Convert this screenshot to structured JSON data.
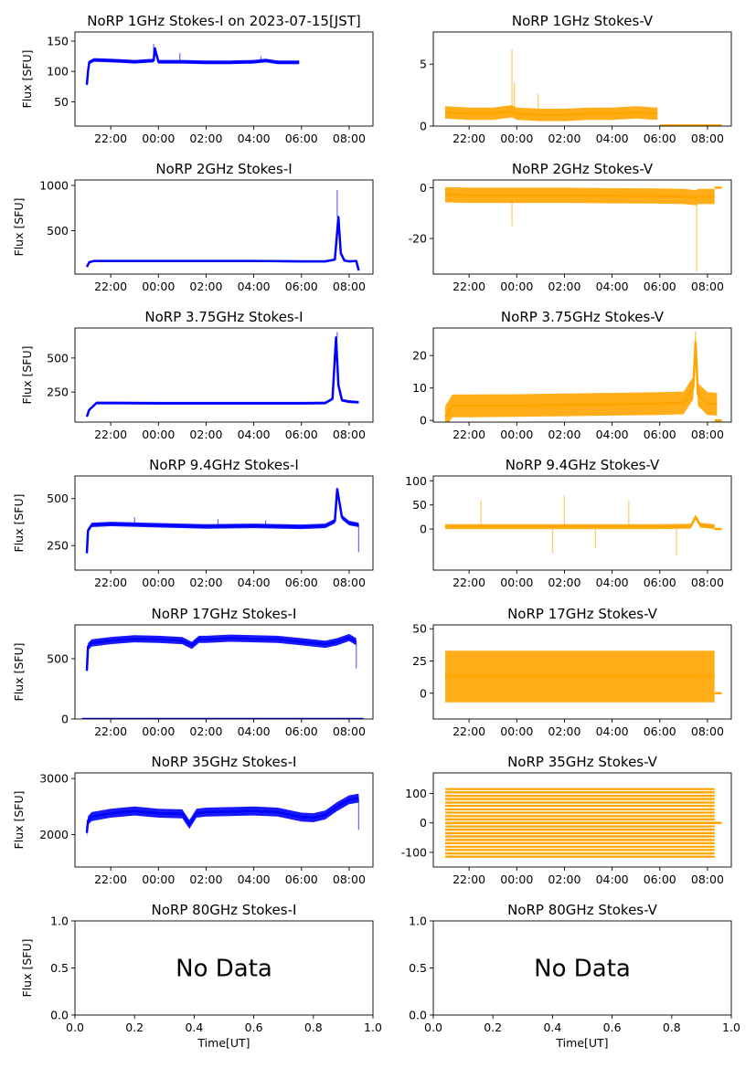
{
  "colors": {
    "stokes_i": "#0000ff",
    "stokes_v": "#ffa500",
    "axis": "#000000"
  },
  "chart_data": [
    {
      "id": "p1i",
      "type": "line",
      "title": "NoRP 1GHz Stokes-I on 2023-07-15[JST]",
      "ylabel": "Flux [SFU]",
      "xlabel": "",
      "x_ticks": [
        "22:00",
        "00:00",
        "02:00",
        "04:00",
        "06:00",
        "08:00"
      ],
      "y_ticks": [
        50,
        100,
        150
      ],
      "ylim": [
        10,
        165
      ],
      "series": [
        {
          "color": "stokes_i",
          "band": 3,
          "x": [
            21.0,
            21.05,
            21.1,
            21.3,
            22,
            23,
            23.8,
            23.85,
            24,
            25,
            26,
            27,
            28,
            28.5,
            29,
            29.9
          ],
          "y": [
            78,
            100,
            115,
            119,
            118,
            116,
            118,
            138,
            116,
            116,
            115,
            115,
            116,
            118,
            115,
            115
          ]
        }
      ],
      "spikes": [
        {
          "x": 23.8,
          "y": 145
        },
        {
          "x": 24.9,
          "y": 130
        },
        {
          "x": 28.3,
          "y": 125
        }
      ],
      "baseline": null,
      "no_data": false
    },
    {
      "id": "p1v",
      "type": "line",
      "title": "NoRP 1GHz Stokes-V",
      "ylabel": "",
      "xlabel": "",
      "x_ticks": [
        "22:00",
        "00:00",
        "02:00",
        "04:00",
        "06:00",
        "08:00"
      ],
      "y_ticks": [
        0,
        5
      ],
      "ylim": [
        0,
        7.6
      ],
      "series": [
        {
          "color": "stokes_v",
          "band": 0.5,
          "x": [
            21.0,
            22,
            23,
            23.8,
            24,
            25,
            26,
            27,
            28,
            29,
            29.9
          ],
          "y": [
            1.1,
            1.0,
            1.0,
            1.2,
            1.0,
            0.9,
            0.9,
            1.0,
            1.0,
            1.1,
            1.0
          ]
        }
      ],
      "spikes": [
        {
          "x": 23.8,
          "y": 6.2
        },
        {
          "x": 24.9,
          "y": 2.6
        },
        {
          "x": 23.9,
          "y": 3.5
        }
      ],
      "baseline": {
        "y": 0.05,
        "x0": 30.0,
        "x1": 32.6
      },
      "no_data": false
    },
    {
      "id": "p2i",
      "type": "line",
      "title": "NoRP 2GHz Stokes-I",
      "ylabel": "Flux [SFU]",
      "xlabel": "",
      "x_ticks": [
        "22:00",
        "00:00",
        "02:00",
        "04:00",
        "06:00",
        "08:00"
      ],
      "y_ticks": [
        500,
        1000
      ],
      "ylim": [
        20,
        1060
      ],
      "series": [
        {
          "color": "stokes_i",
          "band": 12,
          "x": [
            21.0,
            21.1,
            21.3,
            22,
            24,
            26,
            28,
            30,
            31.0,
            31.4,
            31.55,
            31.65,
            31.8,
            32.0,
            32.3,
            32.4
          ],
          "y": [
            100,
            150,
            165,
            165,
            165,
            165,
            165,
            160,
            160,
            180,
            650,
            250,
            170,
            160,
            165,
            60
          ]
        }
      ],
      "spikes": [
        {
          "x": 31.5,
          "y": 950
        }
      ],
      "baseline": null,
      "no_data": false
    },
    {
      "id": "p2v",
      "type": "line",
      "title": "NoRP 2GHz Stokes-V",
      "ylabel": "",
      "xlabel": "",
      "x_ticks": [
        "22:00",
        "00:00",
        "02:00",
        "04:00",
        "06:00",
        "08:00"
      ],
      "y_ticks": [
        -20,
        0
      ],
      "ylim": [
        -34,
        3
      ],
      "series": [
        {
          "color": "stokes_v",
          "band": 3.0,
          "x": [
            21.0,
            22,
            23,
            23.8,
            24,
            26,
            28,
            30,
            31,
            31.5,
            31.6,
            32,
            32.3
          ],
          "y": [
            -2.8,
            -3,
            -3,
            -3,
            -3,
            -3,
            -3.2,
            -3.3,
            -3.5,
            -4,
            -3.5,
            -3.5,
            -3.5
          ]
        }
      ],
      "spikes": [
        {
          "x": 23.8,
          "y": -15
        },
        {
          "x": 31.55,
          "y": -33
        }
      ],
      "baseline": {
        "y": 0,
        "x0": 32.3,
        "x1": 32.6
      },
      "no_data": false
    },
    {
      "id": "p375i",
      "type": "line",
      "title": "NoRP 3.75GHz Stokes-I",
      "ylabel": "Flux [SFU]",
      "xlabel": "",
      "x_ticks": [
        "22:00",
        "00:00",
        "02:00",
        "04:00",
        "06:00",
        "08:00"
      ],
      "y_ticks": [
        250,
        500
      ],
      "ylim": [
        30,
        720
      ],
      "series": [
        {
          "color": "stokes_i",
          "band": 10,
          "x": [
            21.0,
            21.1,
            21.4,
            22,
            24,
            26,
            28,
            30,
            31.0,
            31.3,
            31.45,
            31.55,
            31.7,
            32.0,
            32.4
          ],
          "y": [
            70,
            120,
            170,
            170,
            168,
            168,
            168,
            168,
            170,
            200,
            650,
            300,
            190,
            180,
            175
          ]
        }
      ],
      "spikes": [
        {
          "x": 31.5,
          "y": 690
        }
      ],
      "baseline": null,
      "no_data": false
    },
    {
      "id": "p375v",
      "type": "line",
      "title": "NoRP 3.75GHz Stokes-V",
      "ylabel": "",
      "xlabel": "",
      "x_ticks": [
        "22:00",
        "00:00",
        "02:00",
        "04:00",
        "06:00",
        "08:00"
      ],
      "y_ticks": [
        0,
        10,
        20
      ],
      "ylim": [
        -0.5,
        28.5
      ],
      "series": [
        {
          "color": "stokes_v",
          "band": 3.5,
          "x": [
            21.0,
            21.3,
            22,
            24,
            26,
            28,
            30,
            31,
            31.4,
            31.5,
            31.6,
            32,
            32.4
          ],
          "y": [
            1,
            4.5,
            4.5,
            4.6,
            4.8,
            5,
            5.2,
            5.4,
            10,
            24,
            8,
            5.2,
            5
          ]
        }
      ],
      "spikes": [
        {
          "x": 31.5,
          "y": 27.5
        }
      ],
      "baseline": {
        "y": 0,
        "x0": 32.3,
        "x1": 32.6
      },
      "no_data": false
    },
    {
      "id": "p94i",
      "type": "line",
      "title": "NoRP 9.4GHz Stokes-I",
      "ylabel": "Flux [SFU]",
      "xlabel": "",
      "x_ticks": [
        "22:00",
        "00:00",
        "02:00",
        "04:00",
        "06:00",
        "08:00"
      ],
      "y_ticks": [
        250,
        500
      ],
      "ylim": [
        120,
        620
      ],
      "series": [
        {
          "color": "stokes_i",
          "band": 12,
          "x": [
            21.0,
            21.05,
            21.2,
            22,
            24,
            26,
            28,
            30,
            31.0,
            31.4,
            31.5,
            31.7,
            32.0,
            32.4
          ],
          "y": [
            210,
            330,
            360,
            365,
            358,
            352,
            355,
            350,
            355,
            380,
            550,
            400,
            370,
            360
          ]
        }
      ],
      "spikes": [
        {
          "x": 23.0,
          "y": 400
        },
        {
          "x": 26.5,
          "y": 390
        },
        {
          "x": 28.5,
          "y": 385
        },
        {
          "x": 32.4,
          "y": 215
        }
      ],
      "baseline": null,
      "no_data": false
    },
    {
      "id": "p94v",
      "type": "line",
      "title": "NoRP 9.4GHz Stokes-V",
      "ylabel": "",
      "xlabel": "",
      "x_ticks": [
        "22:00",
        "00:00",
        "02:00",
        "04:00",
        "06:00",
        "08:00"
      ],
      "y_ticks": [
        0,
        50,
        100
      ],
      "ylim": [
        -85,
        110
      ],
      "series": [
        {
          "color": "stokes_v",
          "band": 5,
          "x": [
            21.0,
            22,
            24,
            26,
            28,
            30,
            31.3,
            31.5,
            31.7,
            32.3
          ],
          "y": [
            5,
            5,
            5,
            5,
            5,
            5,
            6,
            25,
            8,
            5
          ]
        }
      ],
      "spikes": [
        {
          "x": 22.5,
          "y": 60
        },
        {
          "x": 25.5,
          "y": -50
        },
        {
          "x": 26.0,
          "y": 70
        },
        {
          "x": 28.7,
          "y": 60
        },
        {
          "x": 27.3,
          "y": -40
        },
        {
          "x": 30.7,
          "y": -55
        }
      ],
      "baseline": {
        "y": 0,
        "x0": 32.3,
        "x1": 32.6
      },
      "no_data": false
    },
    {
      "id": "p17i",
      "type": "line",
      "title": "NoRP 17GHz Stokes-I",
      "ylabel": "Flux [SFU]",
      "xlabel": "",
      "x_ticks": [
        "22:00",
        "00:00",
        "02:00",
        "04:00",
        "06:00",
        "08:00"
      ],
      "y_ticks": [
        0,
        500
      ],
      "ylim": [
        0,
        780
      ],
      "series": [
        {
          "color": "stokes_i",
          "band": 30,
          "x": [
            21.0,
            21.05,
            21.2,
            22,
            23,
            24,
            25,
            25.4,
            25.7,
            26,
            27,
            28,
            29,
            30,
            31,
            31.5,
            32,
            32.3
          ],
          "y": [
            400,
            600,
            630,
            650,
            665,
            660,
            650,
            610,
            660,
            660,
            670,
            665,
            660,
            640,
            620,
            640,
            675,
            640
          ]
        }
      ],
      "spikes": [
        {
          "x": 32.3,
          "y": 420
        }
      ],
      "baseline": {
        "y": 0,
        "x0": 20.8,
        "x1": 32.6
      },
      "no_data": false
    },
    {
      "id": "p17v",
      "type": "line",
      "title": "NoRP 17GHz Stokes-V",
      "ylabel": "",
      "xlabel": "",
      "x_ticks": [
        "22:00",
        "00:00",
        "02:00",
        "04:00",
        "06:00",
        "08:00"
      ],
      "y_ticks": [
        0,
        25,
        50
      ],
      "ylim": [
        -20,
        53
      ],
      "series": [
        {
          "color": "stokes_v",
          "band": 20,
          "x": [
            21.0,
            22,
            24,
            26,
            28,
            30,
            32.3
          ],
          "y": [
            13,
            13,
            13,
            13,
            13,
            13,
            13
          ]
        }
      ],
      "spikes": [],
      "baseline": {
        "y": 0,
        "x0": 32.3,
        "x1": 32.6
      },
      "no_data": false
    },
    {
      "id": "p35i",
      "type": "line",
      "title": "NoRP 35GHz Stokes-I",
      "ylabel": "Flux [SFU]",
      "xlabel": "",
      "x_ticks": [
        "22:00",
        "00:00",
        "02:00",
        "04:00",
        "06:00",
        "08:00"
      ],
      "y_ticks": [
        2000,
        3000
      ],
      "ylim": [
        1420,
        3100
      ],
      "series": [
        {
          "color": "stokes_i",
          "band": 80,
          "x": [
            21.0,
            21.05,
            21.2,
            22,
            23,
            24,
            25,
            25.3,
            25.6,
            26,
            27,
            28,
            29,
            30,
            30.5,
            31,
            31.5,
            32,
            32.4
          ],
          "y": [
            2030,
            2250,
            2320,
            2380,
            2420,
            2380,
            2370,
            2180,
            2380,
            2400,
            2410,
            2420,
            2400,
            2310,
            2300,
            2350,
            2500,
            2620,
            2650
          ]
        }
      ],
      "spikes": [
        {
          "x": 32.4,
          "y": 2080
        }
      ],
      "baseline": null,
      "no_data": false
    },
    {
      "id": "p35v",
      "type": "line",
      "title": "NoRP 35GHz Stokes-V",
      "ylabel": "",
      "xlabel": "",
      "x_ticks": [
        "22:00",
        "00:00",
        "02:00",
        "04:00",
        "06:00",
        "08:00"
      ],
      "y_ticks": [
        -100,
        0,
        100
      ],
      "ylim": [
        -150,
        170
      ],
      "series": [
        {
          "color": "stokes_v",
          "band": 115,
          "x": [
            21.0,
            24,
            28,
            32.3
          ],
          "y": [
            0,
            0,
            0,
            0
          ]
        }
      ],
      "levels": [
        -115,
        -104,
        -92,
        -81,
        -69,
        -58,
        -46,
        -35,
        -23,
        -12,
        0,
        12,
        23,
        35,
        46,
        58,
        69,
        81,
        92,
        104,
        115
      ],
      "spikes": [],
      "baseline": {
        "y": 0,
        "x0": 32.3,
        "x1": 32.6
      },
      "no_data": false
    },
    {
      "id": "p80i",
      "type": "line",
      "title": "NoRP 80GHz Stokes-I",
      "ylabel": "Flux [SFU]",
      "xlabel": "Time[UT]",
      "x_ticks": [
        "0.0",
        "0.2",
        "0.4",
        "0.6",
        "0.8",
        "1.0"
      ],
      "y_ticks": [
        "0.0",
        "0.5",
        "1.0"
      ],
      "ylim": [
        0,
        1
      ],
      "series": [],
      "spikes": [],
      "baseline": null,
      "no_data": true,
      "message": "No Data"
    },
    {
      "id": "p80v",
      "type": "line",
      "title": "NoRP 80GHz Stokes-V",
      "ylabel": "",
      "xlabel": "Time[UT]",
      "x_ticks": [
        "0.0",
        "0.2",
        "0.4",
        "0.6",
        "0.8",
        "1.0"
      ],
      "y_ticks": [
        "0.0",
        "0.5",
        "1.0"
      ],
      "ylim": [
        0,
        1
      ],
      "series": [],
      "spikes": [],
      "baseline": null,
      "no_data": true,
      "message": "No Data"
    }
  ]
}
